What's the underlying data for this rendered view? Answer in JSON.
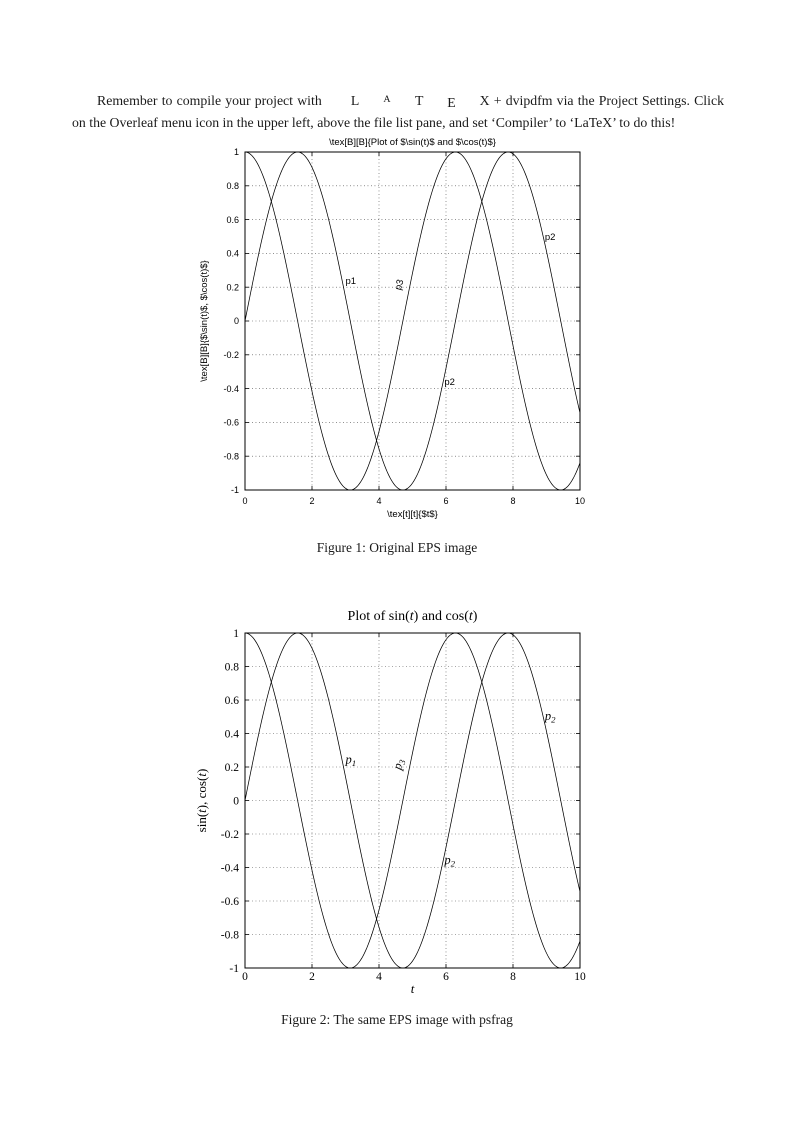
{
  "intro": {
    "part1": "Remember to compile your project with ",
    "latex_logo": "LaTeX",
    "part2": " + dvipdfm via the Project Settings. Click on the Overleaf menu icon in the upper left, above the file list pane, and set ‘Compiler’ to ‘LaTeX’ to do this!"
  },
  "figures": [
    {
      "caption": "Figure 1: Original EPS image"
    },
    {
      "caption": "Figure 2: The same EPS image with psfrag"
    }
  ],
  "chart_data": [
    {
      "figure": "Figure 1",
      "type": "line",
      "title": "\\tex[B][B]{Plot of $\\sin(t)$ and $\\cos(t)$}",
      "xlabel": "\\tex[t][t]{$t$}",
      "ylabel": "\\tex[B][B]{$\\sin(t)$, $\\cos(t)$}",
      "xlim": [
        0,
        10
      ],
      "ylim": [
        -1,
        1
      ],
      "xticks": [
        0,
        2,
        4,
        6,
        8,
        10
      ],
      "yticks": [
        -1,
        -0.8,
        -0.6,
        -0.4,
        -0.2,
        0,
        0.2,
        0.4,
        0.6,
        0.8,
        1
      ],
      "grid": "dotted",
      "legend": "none",
      "series": [
        {
          "name": "sin(t)",
          "fn": "sin",
          "x": [
            0,
            1,
            2,
            3,
            4,
            5,
            6,
            7,
            8,
            9,
            10
          ],
          "y": [
            0,
            0.841,
            0.909,
            0.141,
            -0.757,
            -0.959,
            -0.279,
            0.657,
            0.989,
            0.412,
            -0.544
          ]
        },
        {
          "name": "cos(t)",
          "fn": "cos",
          "x": [
            0,
            1,
            2,
            3,
            4,
            5,
            6,
            7,
            8,
            9,
            10
          ],
          "y": [
            1,
            0.54,
            -0.416,
            -0.99,
            -0.654,
            0.284,
            0.96,
            0.754,
            -0.146,
            -0.911,
            -0.839
          ]
        }
      ],
      "annotations": [
        {
          "text": "p1",
          "x": 3.0,
          "y": 0.22,
          "rotate": 0
        },
        {
          "text": "p3",
          "x": 4.65,
          "y": 0.18,
          "rotate": -75
        },
        {
          "text": "p2",
          "x": 8.95,
          "y": 0.48,
          "rotate": 0
        },
        {
          "text": "p2",
          "x": 5.95,
          "y": -0.38,
          "rotate": 0
        }
      ]
    },
    {
      "figure": "Figure 2",
      "type": "line",
      "title": "Plot of sin(t) and cos(t)",
      "xlabel": "t",
      "ylabel": "sin(t), cos(t)",
      "xlim": [
        0,
        10
      ],
      "ylim": [
        -1,
        1
      ],
      "xticks": [
        0,
        2,
        4,
        6,
        8,
        10
      ],
      "yticks": [
        -1,
        -0.8,
        -0.6,
        -0.4,
        -0.2,
        0,
        0.2,
        0.4,
        0.6,
        0.8,
        1
      ],
      "grid": "dotted",
      "legend": "none",
      "series": [
        {
          "name": "sin(t)",
          "fn": "sin",
          "x": [
            0,
            1,
            2,
            3,
            4,
            5,
            6,
            7,
            8,
            9,
            10
          ],
          "y": [
            0,
            0.841,
            0.909,
            0.141,
            -0.757,
            -0.959,
            -0.279,
            0.657,
            0.989,
            0.412,
            -0.544
          ]
        },
        {
          "name": "cos(t)",
          "fn": "cos",
          "x": [
            0,
            1,
            2,
            3,
            4,
            5,
            6,
            7,
            8,
            9,
            10
          ],
          "y": [
            1,
            0.54,
            -0.416,
            -0.99,
            -0.654,
            0.284,
            0.96,
            0.754,
            -0.146,
            -0.911,
            -0.839
          ]
        }
      ],
      "annotations": [
        {
          "text": "p",
          "sub": "1",
          "italic": true,
          "x": 3.0,
          "y": 0.22,
          "rotate": 0
        },
        {
          "text": "p",
          "sub": "3",
          "italic": true,
          "x": 4.65,
          "y": 0.18,
          "rotate": -75
        },
        {
          "text": "p",
          "sub": "2",
          "italic": true,
          "x": 8.95,
          "y": 0.48,
          "rotate": 0
        },
        {
          "text": "p",
          "sub": "2",
          "italic": true,
          "x": 5.95,
          "y": -0.38,
          "rotate": 0
        }
      ]
    }
  ]
}
